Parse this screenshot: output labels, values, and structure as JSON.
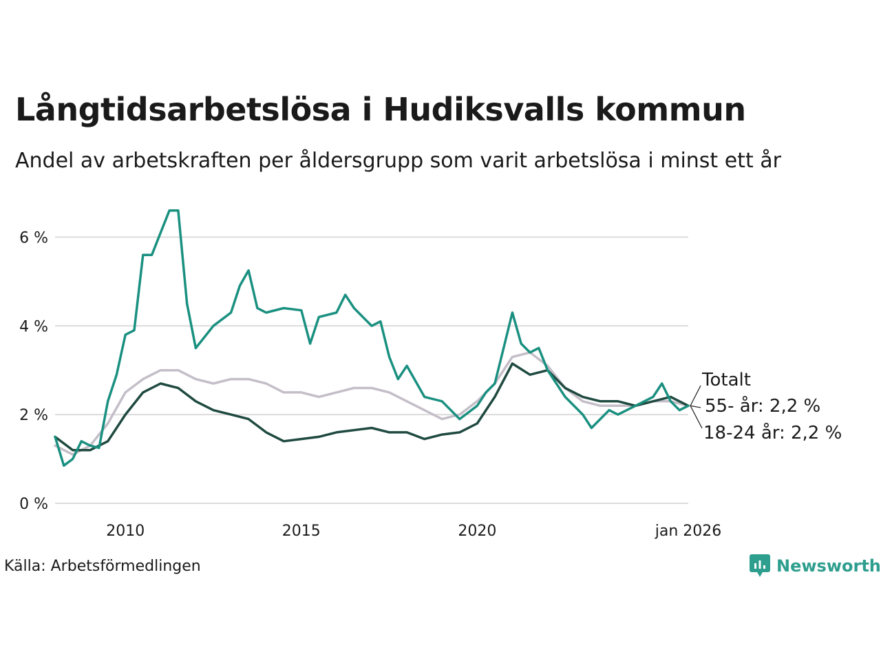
{
  "title": "Långtidsarbetslösa i Hudiksvalls kommun",
  "subtitle": "Andel av arbetskraften per åldersgrupp som varit arbetslösa i minst ett år",
  "source": "Källa: Arbetsförmedlingen",
  "brand": "Newsworthy",
  "colors": {
    "youth": "#1a9080",
    "total": "#1f4a40",
    "older": "#c4bec8",
    "grid": "#dcdcdc",
    "brand": "#2e9e8e"
  },
  "chart_data": {
    "type": "line",
    "x_range": [
      2008.0,
      2026.0
    ],
    "ylim": [
      0,
      7
    ],
    "yticks": [
      {
        "value": 0,
        "label": "0 %"
      },
      {
        "value": 2,
        "label": "2 %"
      },
      {
        "value": 4,
        "label": "4 %"
      },
      {
        "value": 6,
        "label": "6 %"
      }
    ],
    "xticks": [
      {
        "value": 2010,
        "label": "2010"
      },
      {
        "value": 2015,
        "label": "2015"
      },
      {
        "value": 2020,
        "label": "2020"
      },
      {
        "value": 2026,
        "label": "jan 2026"
      }
    ],
    "series": [
      {
        "name": "55- år",
        "end_label": "55- år: 2,2 %",
        "color": "#c4bec8",
        "x": [
          2008.0,
          2008.5,
          2009.0,
          2009.5,
          2010.0,
          2010.5,
          2011.0,
          2011.5,
          2012.0,
          2012.5,
          2013.0,
          2013.5,
          2014.0,
          2014.5,
          2015.0,
          2015.5,
          2016.0,
          2016.5,
          2017.0,
          2017.5,
          2018.0,
          2018.5,
          2019.0,
          2019.5,
          2020.0,
          2020.5,
          2021.0,
          2021.5,
          2022.0,
          2022.5,
          2023.0,
          2023.5,
          2024.0,
          2024.5,
          2025.0,
          2025.5,
          2026.0
        ],
        "values": [
          1.3,
          1.1,
          1.3,
          1.8,
          2.5,
          2.8,
          3.0,
          3.0,
          2.8,
          2.7,
          2.8,
          2.8,
          2.7,
          2.5,
          2.5,
          2.4,
          2.5,
          2.6,
          2.6,
          2.5,
          2.3,
          2.1,
          1.9,
          2.0,
          2.3,
          2.7,
          3.3,
          3.4,
          3.1,
          2.6,
          2.3,
          2.2,
          2.2,
          2.2,
          2.3,
          2.3,
          2.2
        ]
      },
      {
        "name": "Totalt",
        "end_label": "Totalt",
        "color": "#1f4a40",
        "x": [
          2008.0,
          2008.5,
          2009.0,
          2009.5,
          2010.0,
          2010.5,
          2011.0,
          2011.5,
          2012.0,
          2012.5,
          2013.0,
          2013.5,
          2014.0,
          2014.5,
          2015.0,
          2015.5,
          2016.0,
          2016.5,
          2017.0,
          2017.5,
          2018.0,
          2018.5,
          2019.0,
          2019.5,
          2020.0,
          2020.5,
          2021.0,
          2021.5,
          2022.0,
          2022.5,
          2023.0,
          2023.5,
          2024.0,
          2024.5,
          2025.0,
          2025.5,
          2026.0
        ],
        "values": [
          1.5,
          1.2,
          1.2,
          1.4,
          2.0,
          2.5,
          2.7,
          2.6,
          2.3,
          2.1,
          2.0,
          1.9,
          1.6,
          1.4,
          1.45,
          1.5,
          1.6,
          1.65,
          1.7,
          1.6,
          1.6,
          1.45,
          1.55,
          1.6,
          1.8,
          2.4,
          3.15,
          2.9,
          3.0,
          2.6,
          2.4,
          2.3,
          2.3,
          2.2,
          2.3,
          2.4,
          2.2
        ]
      },
      {
        "name": "18-24 år",
        "end_label": "18-24 år: 2,2 %",
        "color": "#1a9080",
        "x": [
          2008.0,
          2008.25,
          2008.5,
          2008.75,
          2009.0,
          2009.25,
          2009.5,
          2009.75,
          2010.0,
          2010.25,
          2010.5,
          2010.75,
          2011.0,
          2011.25,
          2011.5,
          2011.75,
          2012.0,
          2012.5,
          2013.0,
          2013.25,
          2013.5,
          2013.75,
          2014.0,
          2014.5,
          2015.0,
          2015.25,
          2015.5,
          2016.0,
          2016.25,
          2016.5,
          2017.0,
          2017.25,
          2017.5,
          2017.75,
          2018.0,
          2018.5,
          2019.0,
          2019.5,
          2020.0,
          2020.25,
          2020.5,
          2020.75,
          2021.0,
          2021.25,
          2021.5,
          2021.75,
          2022.0,
          2022.5,
          2023.0,
          2023.25,
          2023.5,
          2023.75,
          2024.0,
          2024.5,
          2025.0,
          2025.25,
          2025.5,
          2025.75,
          2026.0
        ],
        "values": [
          1.5,
          0.85,
          1.0,
          1.4,
          1.3,
          1.25,
          2.3,
          2.9,
          3.8,
          3.9,
          5.6,
          5.6,
          6.1,
          6.6,
          6.6,
          4.5,
          3.5,
          4.0,
          4.3,
          4.9,
          5.25,
          4.4,
          4.3,
          4.4,
          4.35,
          3.6,
          4.2,
          4.3,
          4.7,
          4.4,
          4.0,
          4.1,
          3.3,
          2.8,
          3.1,
          2.4,
          2.3,
          1.9,
          2.2,
          2.5,
          2.7,
          3.5,
          4.3,
          3.6,
          3.4,
          3.5,
          3.0,
          2.4,
          2.0,
          1.7,
          1.9,
          2.1,
          2.0,
          2.2,
          2.4,
          2.7,
          2.3,
          2.1,
          2.2
        ]
      }
    ]
  }
}
